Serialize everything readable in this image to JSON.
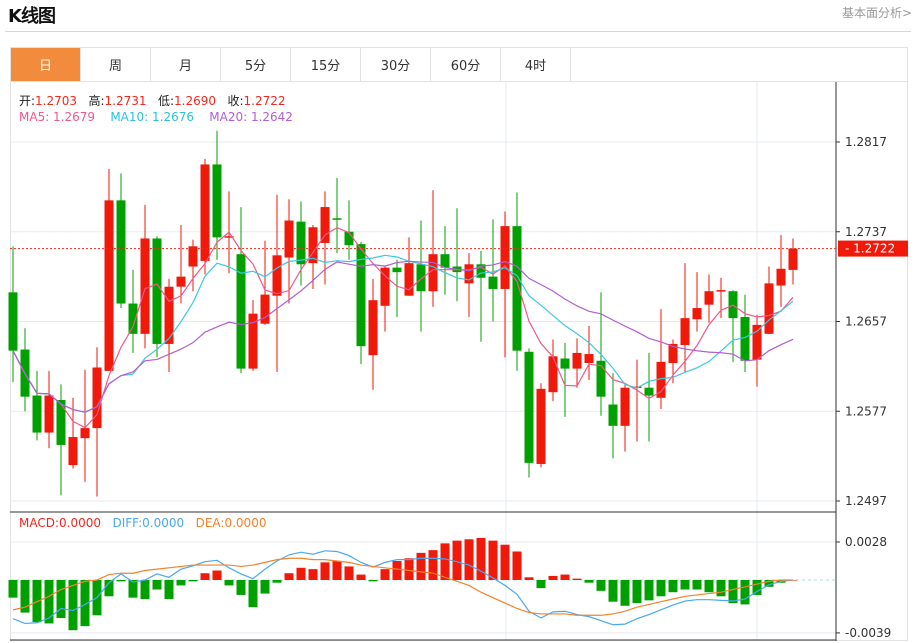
{
  "header": {
    "title": "K线图",
    "link": "基本面分析>"
  },
  "tabs": [
    {
      "label": "日",
      "active": true
    },
    {
      "label": "周"
    },
    {
      "label": "月"
    },
    {
      "label": "5分"
    },
    {
      "label": "15分"
    },
    {
      "label": "30分"
    },
    {
      "label": "60分"
    },
    {
      "label": "4时"
    }
  ],
  "ohlc": {
    "open_label": "开:",
    "open": "1.2703",
    "high_label": "高:",
    "high": "1.2731",
    "low_label": "低:",
    "low": "1.2690",
    "close_label": "收:",
    "close": "1.2722"
  },
  "ma": {
    "ma5": "MA5: 1.2679",
    "ma10": "MA10: 1.2676",
    "ma20": "MA20: 1.2642"
  },
  "macd_info": {
    "macd": "MACD:0.0000",
    "diff": "DIFF:0.0000",
    "dea": "DEA:0.0000"
  },
  "colors": {
    "up": "#f0190a",
    "down": "#00a000",
    "ma5": "#f0588a",
    "ma10": "#3cc8e0",
    "ma20": "#b25fd0",
    "diff": "#4aa8f0",
    "dea": "#f5822a",
    "accent": "#f28c3c"
  },
  "chart_data": {
    "type": "candlestick",
    "price_ticks": [
      "1.2817",
      "1.2737",
      "1.2657",
      "1.2577",
      "1.2497"
    ],
    "current_price": "1.2722",
    "macd_ticks": [
      "0.0028",
      "-0.0039"
    ],
    "candles_ohlc": [
      [
        1.2683,
        1.2724,
        1.2603,
        1.2631
      ],
      [
        1.2632,
        1.2651,
        1.2577,
        1.259
      ],
      [
        1.2591,
        1.2613,
        1.2551,
        1.2558
      ],
      [
        1.2558,
        1.2613,
        1.2544,
        1.2591
      ],
      [
        1.2587,
        1.2601,
        1.2502,
        1.2547
      ],
      [
        1.2529,
        1.2589,
        1.2526,
        1.2554
      ],
      [
        1.2553,
        1.2614,
        1.2514,
        1.2562
      ],
      [
        1.2562,
        1.2634,
        1.2501,
        1.2616
      ],
      [
        1.2613,
        1.2793,
        1.2613,
        1.2765
      ],
      [
        1.2765,
        1.2789,
        1.2669,
        1.2673
      ],
      [
        1.2673,
        1.2703,
        1.2629,
        1.2646
      ],
      [
        1.2646,
        1.2761,
        1.2633,
        1.2731
      ],
      [
        1.2731,
        1.2733,
        1.2625,
        1.2637
      ],
      [
        1.2637,
        1.2695,
        1.2612,
        1.2688
      ],
      [
        1.2688,
        1.2743,
        1.2673,
        1.2697
      ],
      [
        1.2706,
        1.273,
        1.2684,
        1.2724
      ],
      [
        1.2711,
        1.2802,
        1.2699,
        1.2797
      ],
      [
        1.2797,
        1.2827,
        1.2712,
        1.2732
      ],
      [
        1.2732,
        1.2773,
        1.27,
        1.2733
      ],
      [
        1.2717,
        1.2759,
        1.2611,
        1.2615
      ],
      [
        1.2615,
        1.2676,
        1.2613,
        1.2664
      ],
      [
        1.2655,
        1.2729,
        1.2654,
        1.2681
      ],
      [
        1.268,
        1.277,
        1.2612,
        1.2716
      ],
      [
        1.2714,
        1.2766,
        1.2673,
        1.2747
      ],
      [
        1.2746,
        1.2764,
        1.2689,
        1.2708
      ],
      [
        1.2709,
        1.2743,
        1.2686,
        1.2741
      ],
      [
        1.2727,
        1.2773,
        1.269,
        1.2759
      ],
      [
        1.2749,
        1.2785,
        1.2718,
        1.2748
      ],
      [
        1.2737,
        1.2765,
        1.2712,
        1.2725
      ],
      [
        1.2726,
        1.2728,
        1.2619,
        1.2635
      ],
      [
        1.2627,
        1.2695,
        1.2596,
        1.2676
      ],
      [
        1.2671,
        1.2706,
        1.2648,
        1.2705
      ],
      [
        1.2705,
        1.2712,
        1.2661,
        1.2701
      ],
      [
        1.268,
        1.2732,
        1.268,
        1.2709
      ],
      [
        1.2708,
        1.2747,
        1.2648,
        1.2684
      ],
      [
        1.2684,
        1.2774,
        1.267,
        1.2717
      ],
      [
        1.2717,
        1.2742,
        1.2681,
        1.2705
      ],
      [
        1.2706,
        1.2758,
        1.2675,
        1.2701
      ],
      [
        1.2691,
        1.2718,
        1.2661,
        1.2708
      ],
      [
        1.2708,
        1.272,
        1.2639,
        1.2696
      ],
      [
        1.2697,
        1.2748,
        1.2657,
        1.2686
      ],
      [
        1.2686,
        1.2755,
        1.2625,
        1.2742
      ],
      [
        1.2742,
        1.2772,
        1.2613,
        1.2631
      ],
      [
        1.263,
        1.2633,
        1.2518,
        1.2531
      ],
      [
        1.253,
        1.2602,
        1.2527,
        1.2597
      ],
      [
        1.2594,
        1.2641,
        1.2586,
        1.2626
      ],
      [
        1.2624,
        1.2638,
        1.2572,
        1.2615
      ],
      [
        1.2615,
        1.2642,
        1.2598,
        1.2629
      ],
      [
        1.262,
        1.2653,
        1.2605,
        1.2628
      ],
      [
        1.2622,
        1.2683,
        1.2573,
        1.259
      ],
      [
        1.2583,
        1.2611,
        1.2535,
        1.2564
      ],
      [
        1.2564,
        1.2601,
        1.2541,
        1.2598
      ],
      [
        1.2598,
        1.2623,
        1.255,
        1.2599
      ],
      [
        1.2598,
        1.2629,
        1.255,
        1.2591
      ],
      [
        1.2589,
        1.2668,
        1.2579,
        1.2621
      ],
      [
        1.262,
        1.2641,
        1.2602,
        1.2637
      ],
      [
        1.2636,
        1.2709,
        1.2612,
        1.266
      ],
      [
        1.2659,
        1.2701,
        1.2648,
        1.2669
      ],
      [
        1.2672,
        1.2699,
        1.2656,
        1.2684
      ],
      [
        1.2684,
        1.2696,
        1.266,
        1.2685
      ],
      [
        1.2684,
        1.2685,
        1.2621,
        1.266
      ],
      [
        1.2661,
        1.2681,
        1.2612,
        1.2622
      ],
      [
        1.2623,
        1.2663,
        1.2599,
        1.2654
      ],
      [
        1.2646,
        1.2706,
        1.2646,
        1.2691
      ],
      [
        1.2689,
        1.2734,
        1.267,
        1.2704
      ],
      [
        1.2703,
        1.2731,
        1.269,
        1.2722
      ]
    ],
    "macd_hist": [
      -0.0013,
      -0.0024,
      -0.0031,
      -0.0032,
      -0.0028,
      -0.0037,
      -0.0034,
      -0.0026,
      -0.0012,
      -0.0001,
      -0.0013,
      -0.0014,
      -0.0007,
      -0.0014,
      -0.0004,
      -0.0001,
      0.0005,
      0.0007,
      -0.0004,
      -0.0011,
      -0.002,
      -0.001,
      -0.0002,
      0.0005,
      0.0009,
      0.0008,
      0.0013,
      0.0014,
      0.001,
      0.0004,
      -0.0001,
      0.0008,
      0.0014,
      0.0016,
      0.002,
      0.0022,
      0.0027,
      0.0029,
      0.003,
      0.0031,
      0.0029,
      0.0026,
      0.0021,
      0.0002,
      -0.0006,
      0.0003,
      0.0004,
      0.0001,
      -0.0002,
      -0.0008,
      -0.0016,
      -0.0019,
      -0.0017,
      -0.0015,
      -0.0012,
      -0.0009,
      -0.0007,
      -0.0007,
      -0.0009,
      -0.0012,
      -0.0017,
      -0.0018,
      -0.0011,
      -0.0005,
      -0.0002,
      0.0
    ],
    "dea": [
      -0.0022,
      -0.002,
      -0.0016,
      -0.0012,
      -0.0007,
      -0.0004,
      -0.0001,
      0.0,
      0.0004,
      0.0005,
      0.0005,
      0.0007,
      0.0008,
      0.0009,
      0.001,
      0.0011,
      0.0011,
      0.0011,
      0.0011,
      0.001,
      0.0011,
      0.0013,
      0.0015,
      0.0016,
      0.0016,
      0.0015,
      0.0015,
      0.0014,
      0.0013,
      0.0011,
      0.001,
      0.0009,
      0.0008,
      0.0007,
      0.0006,
      0.0005,
      0.0002,
      -0.0001,
      -0.0004,
      -0.0009,
      -0.0013,
      -0.0017,
      -0.0021,
      -0.0024,
      -0.0025,
      -0.0025,
      -0.0025,
      -0.0026,
      -0.0026,
      -0.0026,
      -0.0025,
      -0.0023,
      -0.002,
      -0.0018,
      -0.0016,
      -0.0014,
      -0.0012,
      -0.0011,
      -0.001,
      -0.0009,
      -0.0007,
      -0.0005,
      -0.0003,
      -0.0001,
      0.0,
      0.0
    ]
  }
}
